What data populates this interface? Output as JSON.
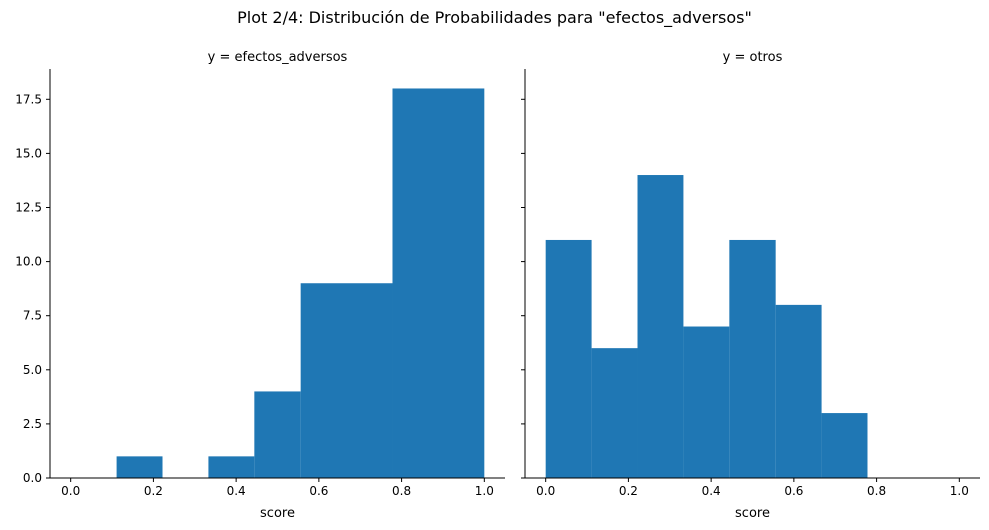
{
  "title": "Plot 2/4: Distribución de Probabilidades para \"efectos_adversos\"",
  "chart_data": [
    {
      "type": "bar",
      "subtitle": "y = efectos_adversos",
      "xlabel": "score",
      "ylabel": "",
      "xlim": [
        -0.05,
        1.05
      ],
      "ylim": [
        0,
        18.9
      ],
      "xticks": [
        "0.0",
        "0.2",
        "0.4",
        "0.6",
        "0.8",
        "1.0"
      ],
      "yticks": [
        "0.0",
        "2.5",
        "5.0",
        "7.5",
        "10.0",
        "12.5",
        "15.0",
        "17.5"
      ],
      "bins": [
        {
          "x0": 0.111,
          "x1": 0.222,
          "value": 1
        },
        {
          "x0": 0.333,
          "x1": 0.444,
          "value": 1
        },
        {
          "x0": 0.444,
          "x1": 0.556,
          "value": 4
        },
        {
          "x0": 0.556,
          "x1": 0.778,
          "value": 9
        },
        {
          "x0": 0.778,
          "x1": 1.0,
          "value": 18
        }
      ],
      "color": "#1f77b4"
    },
    {
      "type": "bar",
      "subtitle": "y = otros",
      "xlabel": "score",
      "ylabel": "",
      "xlim": [
        -0.05,
        1.05
      ],
      "ylim": [
        0,
        18.9
      ],
      "xticks": [
        "0.0",
        "0.2",
        "0.4",
        "0.6",
        "0.8",
        "1.0"
      ],
      "yticks": [],
      "bins": [
        {
          "x0": 0.0,
          "x1": 0.111,
          "value": 11
        },
        {
          "x0": 0.111,
          "x1": 0.222,
          "value": 6
        },
        {
          "x0": 0.222,
          "x1": 0.333,
          "value": 14
        },
        {
          "x0": 0.333,
          "x1": 0.444,
          "value": 7
        },
        {
          "x0": 0.444,
          "x1": 0.556,
          "value": 11
        },
        {
          "x0": 0.556,
          "x1": 0.667,
          "value": 8
        },
        {
          "x0": 0.667,
          "x1": 0.778,
          "value": 3
        }
      ],
      "color": "#1f77b4"
    }
  ]
}
